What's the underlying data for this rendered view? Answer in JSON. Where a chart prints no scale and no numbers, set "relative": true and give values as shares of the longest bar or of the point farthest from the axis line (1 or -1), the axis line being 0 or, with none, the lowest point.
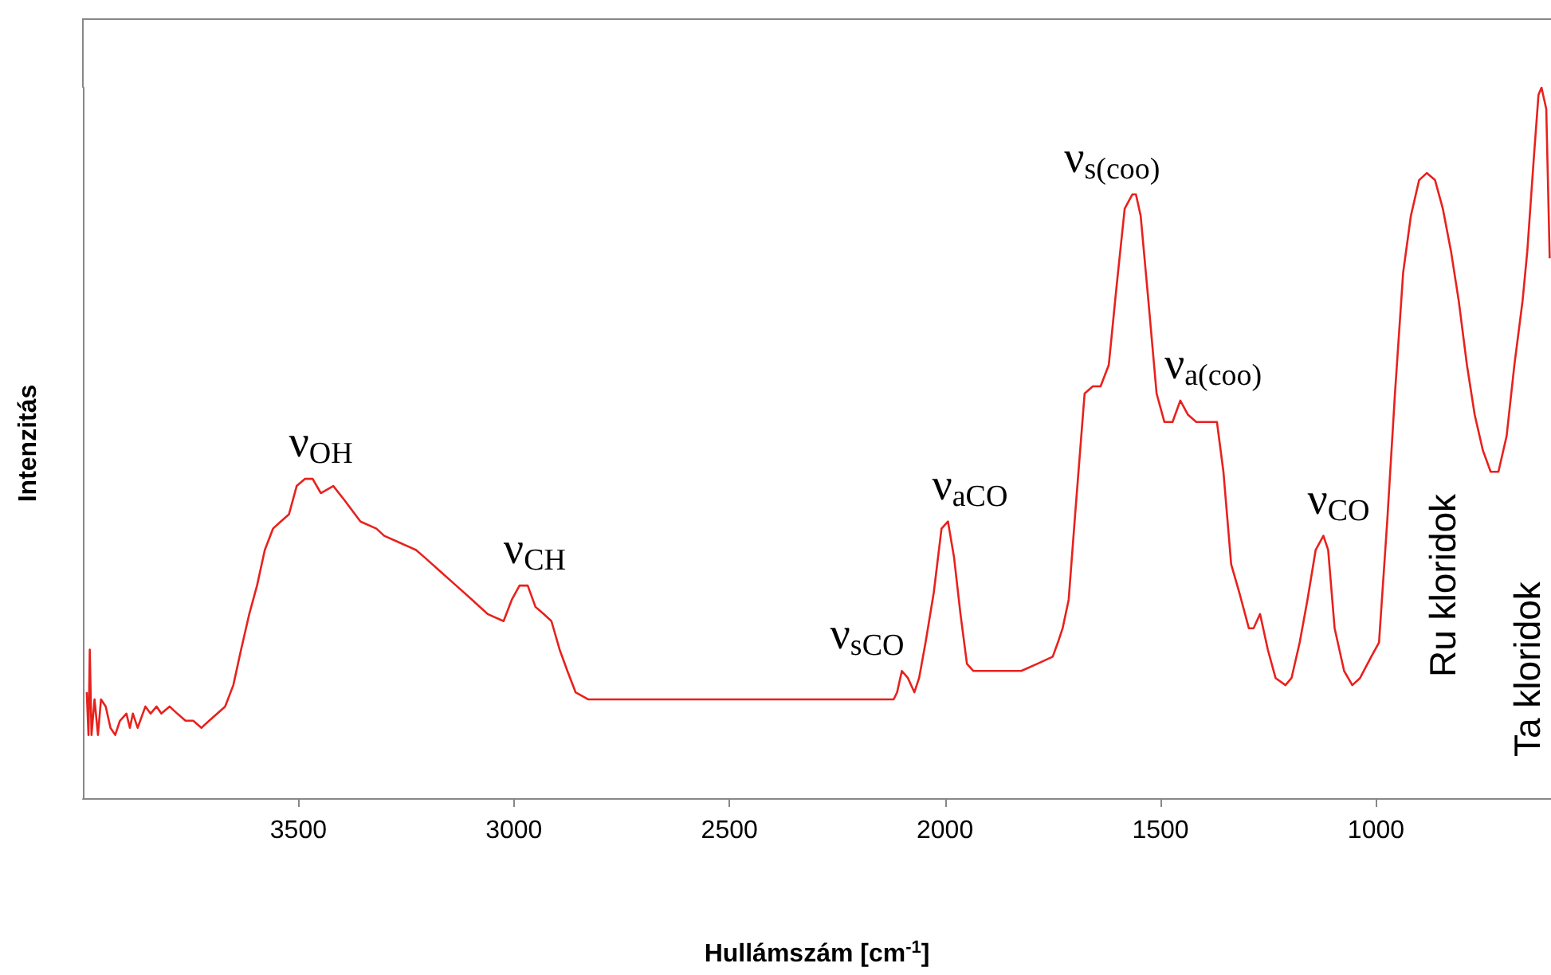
{
  "chart_data": {
    "type": "line",
    "relative": true,
    "xlabel": "Hullámszám [cm$^{-1}$]",
    "ylabel": "Intenzitás",
    "xlim": [
      4000,
      594
    ],
    "xticks": [
      3500,
      3000,
      2500,
      2000,
      1500,
      1000
    ],
    "grid": false,
    "marker": "none",
    "line_style": "solid",
    "series": [
      {
        "color": "#e8211d",
        "x": [
          3991,
          3987,
          3984,
          3980,
          3973,
          3965,
          3958,
          3947,
          3936,
          3925,
          3914,
          3899,
          3891,
          3884,
          3873,
          3855,
          3843,
          3829,
          3818,
          3799,
          3781,
          3762,
          3744,
          3725,
          3707,
          3670,
          3651,
          3633,
          3614,
          3596,
          3578,
          3559,
          3541,
          3522,
          3504,
          3485,
          3467,
          3448,
          3419,
          3393,
          3356,
          3319,
          3301,
          3264,
          3227,
          3208,
          3171,
          3134,
          3097,
          3061,
          3024,
          3005,
          2987,
          2968,
          2950,
          2931,
          2913,
          2894,
          2876,
          2857,
          2828,
          2710,
          2636,
          2562,
          2488,
          2414,
          2340,
          2248,
          2119,
          2111,
          2100,
          2086,
          2071,
          2060,
          2045,
          2026,
          2008,
          1993,
          1979,
          1964,
          1949,
          1934,
          1860,
          1823,
          1786,
          1750,
          1738,
          1727,
          1713,
          1698,
          1676,
          1657,
          1639,
          1620,
          1602,
          1583,
          1565,
          1557,
          1546,
          1528,
          1509,
          1491,
          1472,
          1454,
          1436,
          1417,
          1391,
          1369,
          1354,
          1336,
          1317,
          1295,
          1284,
          1269,
          1251,
          1233,
          1210,
          1196,
          1177,
          1159,
          1140,
          1122,
          1111,
          1096,
          1074,
          1055,
          1037,
          1011,
          993,
          974,
          956,
          937,
          919,
          900,
          882,
          863,
          845,
          826,
          808,
          789,
          771,
          752,
          734,
          716,
          697,
          679,
          660,
          649,
          634,
          623,
          616,
          605,
          597
        ],
        "values": [
          0.15,
          0.09,
          0.21,
          0.09,
          0.14,
          0.09,
          0.14,
          0.13,
          0.1,
          0.09,
          0.11,
          0.12,
          0.1,
          0.12,
          0.1,
          0.13,
          0.12,
          0.13,
          0.12,
          0.13,
          0.12,
          0.11,
          0.11,
          0.1,
          0.11,
          0.13,
          0.16,
          0.21,
          0.26,
          0.3,
          0.35,
          0.38,
          0.39,
          0.4,
          0.44,
          0.45,
          0.45,
          0.43,
          0.44,
          0.42,
          0.39,
          0.38,
          0.37,
          0.36,
          0.35,
          0.34,
          0.32,
          0.3,
          0.28,
          0.26,
          0.25,
          0.28,
          0.3,
          0.3,
          0.27,
          0.26,
          0.25,
          0.21,
          0.18,
          0.15,
          0.14,
          0.14,
          0.14,
          0.14,
          0.14,
          0.14,
          0.14,
          0.14,
          0.14,
          0.15,
          0.18,
          0.17,
          0.15,
          0.17,
          0.22,
          0.29,
          0.38,
          0.39,
          0.34,
          0.26,
          0.19,
          0.18,
          0.18,
          0.18,
          0.19,
          0.2,
          0.22,
          0.24,
          0.28,
          0.4,
          0.57,
          0.58,
          0.58,
          0.61,
          0.72,
          0.83,
          0.85,
          0.85,
          0.82,
          0.7,
          0.57,
          0.53,
          0.53,
          0.56,
          0.54,
          0.53,
          0.53,
          0.53,
          0.46,
          0.33,
          0.29,
          0.24,
          0.24,
          0.26,
          0.21,
          0.17,
          0.16,
          0.17,
          0.22,
          0.28,
          0.35,
          0.37,
          0.35,
          0.24,
          0.18,
          0.16,
          0.17,
          0.2,
          0.22,
          0.39,
          0.57,
          0.74,
          0.82,
          0.87,
          0.88,
          0.87,
          0.83,
          0.77,
          0.7,
          0.61,
          0.54,
          0.49,
          0.46,
          0.46,
          0.51,
          0.61,
          0.7,
          0.77,
          0.9,
          0.99,
          1.0,
          0.97,
          0.76
        ]
      }
    ],
    "annotations": [
      {
        "text": "ν$_{OH}$",
        "x": 3485,
        "y": 0.45
      },
      {
        "text": "ν$_{CH}$",
        "x": 2987,
        "y": 0.3
      },
      {
        "text": "ν$_{sCO}$",
        "x": 2100,
        "y": 0.18
      },
      {
        "text": "ν$_{aCO}$",
        "x": 1993,
        "y": 0.39
      },
      {
        "text": "ν$_{s(coo)}$",
        "x": 1557,
        "y": 0.85
      },
      {
        "text": "ν$_{a(coo)}$",
        "x": 1454,
        "y": 0.56
      },
      {
        "text": "ν$_{CO}$",
        "x": 1122,
        "y": 0.37
      },
      "Ru kloridok",
      "Ta kloridok"
    ]
  }
}
